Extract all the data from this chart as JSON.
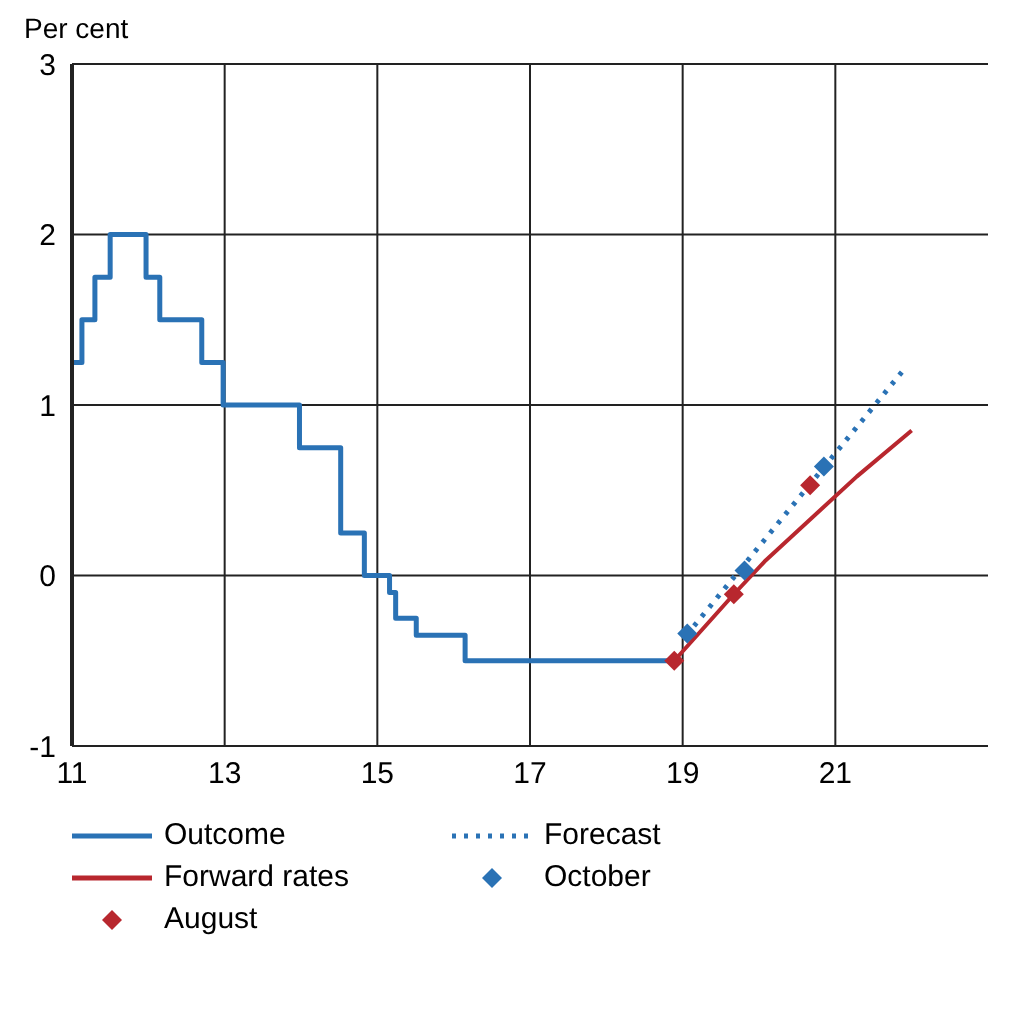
{
  "chart_data": {
    "type": "line",
    "ylabel": "Per cent",
    "xlim": [
      11,
      23
    ],
    "xticks": [
      11,
      13,
      15,
      17,
      19,
      21
    ],
    "ylim": [
      -1,
      3
    ],
    "yticks": [
      -1,
      0,
      1,
      2,
      3
    ],
    "grid": true,
    "legend": "bottom",
    "series": [
      {
        "name": "Outcome",
        "type": "step",
        "color": "#2a72b5",
        "line_style": "solid",
        "x": [
          11.0,
          11.13,
          11.3,
          11.5,
          11.97,
          12.15,
          12.7,
          12.98,
          13.98,
          14.52,
          14.83,
          15.16,
          15.24,
          15.51,
          16.15,
          18.89
        ],
        "values": [
          1.25,
          1.5,
          1.75,
          2.0,
          1.75,
          1.5,
          1.25,
          1.0,
          0.75,
          0.25,
          0,
          -0.1,
          -0.25,
          -0.35,
          -0.5,
          -0.5
        ]
      },
      {
        "name": "Forecast",
        "type": "line",
        "color": "#2a72b5",
        "line_style": "dotted",
        "x": [
          19.05,
          21.92
        ],
        "values": [
          -0.35,
          1.22
        ]
      },
      {
        "name": "Forward rates",
        "color": "#b8272e",
        "line_style": "solid",
        "x": [
          18.89,
          19.67,
          20.09,
          21.28,
          22.0
        ],
        "values": [
          -0.5,
          -0.11,
          0.09,
          0.58,
          0.85
        ]
      },
      {
        "name": "October",
        "type": "scatter",
        "marker": "diamond",
        "color": "#2a72b5",
        "x": [
          19.06,
          19.81,
          20.85
        ],
        "values": [
          -0.34,
          0.03,
          0.64
        ]
      },
      {
        "name": "August",
        "type": "scatter",
        "marker": "diamond",
        "color": "#b8272e",
        "x": [
          18.89,
          19.67,
          20.67
        ],
        "values": [
          -0.5,
          -0.11,
          0.53
        ]
      }
    ]
  }
}
